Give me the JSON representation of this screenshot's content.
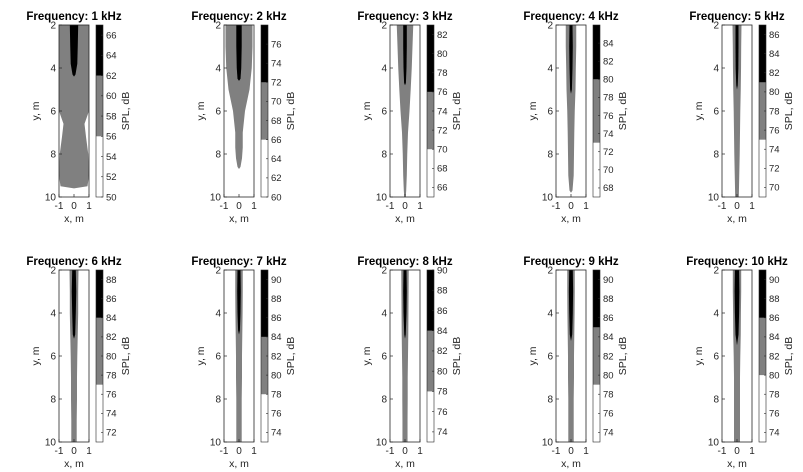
{
  "chart_data": {
    "type": "heatmap",
    "layout": {
      "rows": 2,
      "cols": 5
    },
    "colors": {
      "high": "#000000",
      "mid": "#808080",
      "low": "#ffffff"
    },
    "xlim": [
      -1,
      1
    ],
    "ylim": [
      2,
      10
    ],
    "y_reversed": true,
    "xticks": [
      "-1",
      "0",
      "1"
    ],
    "yticks": [
      "2",
      "4",
      "6",
      "8",
      "10"
    ],
    "plots": [
      {
        "title": "Frequency: 1 kHz",
        "xlabel": "x, m",
        "ylabel": "y, m",
        "colorbar_label": "SPL, dB",
        "cb_range": [
          50,
          67
        ],
        "cb_ticks": [
          "50",
          "52",
          "54",
          "56",
          "58",
          "60",
          "62",
          "64",
          "66"
        ],
        "cb_levels": [
          56,
          62
        ],
        "mid_profile": [
          [
            2,
            1.0
          ],
          [
            3,
            1.0
          ],
          [
            4,
            1.0
          ],
          [
            5,
            1.0
          ],
          [
            6,
            1.0
          ],
          [
            6.6,
            0.7
          ],
          [
            7.2,
            0.8
          ],
          [
            8,
            0.95
          ],
          [
            9,
            1.0
          ],
          [
            9.5,
            0.9
          ],
          [
            9.6,
            0.0
          ]
        ],
        "high_profile": [
          [
            2,
            0.28
          ],
          [
            3,
            0.25
          ],
          [
            3.8,
            0.22
          ],
          [
            4.3,
            0.1
          ],
          [
            4.4,
            0.0
          ]
        ]
      },
      {
        "title": "Frequency: 2 kHz",
        "xlabel": "x, m",
        "ylabel": "y, m",
        "colorbar_label": "SPL, dB",
        "cb_range": [
          60,
          78
        ],
        "cb_ticks": [
          "60",
          "62",
          "64",
          "66",
          "68",
          "70",
          "72",
          "74",
          "76"
        ],
        "cb_levels": [
          66,
          72
        ],
        "mid_profile": [
          [
            2,
            0.9
          ],
          [
            3,
            0.9
          ],
          [
            4,
            0.85
          ],
          [
            5,
            0.7
          ],
          [
            6,
            0.4
          ],
          [
            7,
            0.25
          ],
          [
            7.7,
            0.25
          ],
          [
            8.2,
            0.2
          ],
          [
            8.6,
            0.1
          ],
          [
            8.7,
            0.0
          ]
        ],
        "high_profile": [
          [
            2,
            0.18
          ],
          [
            3,
            0.18
          ],
          [
            4,
            0.15
          ],
          [
            4.5,
            0.1
          ],
          [
            4.6,
            0.0
          ]
        ]
      },
      {
        "title": "Frequency: 3 kHz",
        "xlabel": "x, m",
        "ylabel": "y, m",
        "colorbar_label": "SPL, dB",
        "cb_range": [
          65,
          83
        ],
        "cb_ticks": [
          "66",
          "68",
          "70",
          "72",
          "74",
          "76",
          "78",
          "80",
          "82"
        ],
        "cb_levels": [
          70,
          76
        ],
        "mid_profile": [
          [
            2,
            0.55
          ],
          [
            3,
            0.5
          ],
          [
            4,
            0.45
          ],
          [
            5,
            0.38
          ],
          [
            6,
            0.3
          ],
          [
            7,
            0.2
          ],
          [
            8,
            0.15
          ],
          [
            9,
            0.12
          ],
          [
            9.7,
            0.08
          ],
          [
            10,
            0.05
          ]
        ],
        "high_profile": [
          [
            2,
            0.12
          ],
          [
            3,
            0.12
          ],
          [
            4,
            0.1
          ],
          [
            4.7,
            0.06
          ],
          [
            4.8,
            0.0
          ]
        ]
      },
      {
        "title": "Frequency: 4 kHz",
        "xlabel": "x, m",
        "ylabel": "y, m",
        "colorbar_label": "SPL, dB",
        "cb_range": [
          67,
          86
        ],
        "cb_ticks": [
          "68",
          "70",
          "72",
          "74",
          "76",
          "78",
          "80",
          "82",
          "84"
        ],
        "cb_levels": [
          73,
          80
        ],
        "mid_profile": [
          [
            2,
            0.35
          ],
          [
            3,
            0.35
          ],
          [
            4,
            0.32
          ],
          [
            5,
            0.3
          ],
          [
            6,
            0.25
          ],
          [
            7,
            0.22
          ],
          [
            8,
            0.2
          ],
          [
            9,
            0.18
          ],
          [
            9.7,
            0.1
          ],
          [
            9.8,
            0.0
          ]
        ],
        "high_profile": [
          [
            2,
            0.1
          ],
          [
            3,
            0.12
          ],
          [
            4,
            0.1
          ],
          [
            5,
            0.06
          ],
          [
            5.2,
            0.0
          ]
        ]
      },
      {
        "title": "Frequency: 5 kHz",
        "xlabel": "x, m",
        "ylabel": "y, m",
        "colorbar_label": "SPL, dB",
        "cb_range": [
          69,
          87
        ],
        "cb_ticks": [
          "70",
          "72",
          "74",
          "76",
          "78",
          "80",
          "82",
          "84",
          "86"
        ],
        "cb_levels": [
          75,
          81
        ],
        "mid_profile": [
          [
            2,
            0.3
          ],
          [
            3,
            0.28
          ],
          [
            4,
            0.27
          ],
          [
            5,
            0.25
          ],
          [
            6,
            0.22
          ],
          [
            7,
            0.2
          ],
          [
            8,
            0.18
          ],
          [
            9,
            0.15
          ],
          [
            10,
            0.12
          ]
        ],
        "high_profile": [
          [
            2,
            0.1
          ],
          [
            3,
            0.1
          ],
          [
            4,
            0.09
          ],
          [
            4.8,
            0.05
          ],
          [
            5.0,
            0.0
          ]
        ]
      },
      {
        "title": "Frequency: 6 kHz",
        "xlabel": "x, m",
        "ylabel": "y, m",
        "colorbar_label": "SPL, dB",
        "cb_range": [
          71,
          89
        ],
        "cb_ticks": [
          "72",
          "74",
          "76",
          "78",
          "80",
          "82",
          "84",
          "86",
          "88"
        ],
        "cb_levels": [
          77,
          84
        ],
        "mid_profile": [
          [
            2,
            0.3
          ],
          [
            3,
            0.28
          ],
          [
            4,
            0.28
          ],
          [
            5,
            0.25
          ],
          [
            6,
            0.22
          ],
          [
            7,
            0.2
          ],
          [
            8,
            0.2
          ],
          [
            9,
            0.18
          ],
          [
            10,
            0.18
          ]
        ],
        "high_profile": [
          [
            2,
            0.12
          ],
          [
            3,
            0.15
          ],
          [
            4,
            0.12
          ],
          [
            5,
            0.08
          ],
          [
            5.2,
            0.0
          ]
        ]
      },
      {
        "title": "Frequency: 7 kHz",
        "xlabel": "x, m",
        "ylabel": "y, m",
        "colorbar_label": "SPL, dB",
        "cb_range": [
          73,
          91
        ],
        "cb_ticks": [
          "74",
          "76",
          "78",
          "80",
          "82",
          "84",
          "86",
          "88",
          "90"
        ],
        "cb_levels": [
          78,
          84
        ],
        "mid_profile": [
          [
            2,
            0.25
          ],
          [
            3,
            0.25
          ],
          [
            4,
            0.24
          ],
          [
            5,
            0.22
          ],
          [
            6,
            0.2
          ],
          [
            7,
            0.2
          ],
          [
            8,
            0.18
          ],
          [
            9,
            0.18
          ],
          [
            10,
            0.18
          ]
        ],
        "high_profile": [
          [
            2,
            0.1
          ],
          [
            3,
            0.12
          ],
          [
            4,
            0.1
          ],
          [
            4.8,
            0.06
          ],
          [
            5.0,
            0.0
          ]
        ]
      },
      {
        "title": "Frequency: 8 kHz",
        "xlabel": "x, m",
        "ylabel": "y, m",
        "colorbar_label": "SPL, dB",
        "cb_range": [
          73,
          90
        ],
        "cb_ticks": [
          "74",
          "76",
          "78",
          "80",
          "82",
          "84",
          "86",
          "88",
          "90"
        ],
        "cb_levels": [
          78,
          84
        ],
        "mid_profile": [
          [
            2,
            0.25
          ],
          [
            3,
            0.24
          ],
          [
            4,
            0.23
          ],
          [
            5,
            0.22
          ],
          [
            6,
            0.2
          ],
          [
            7,
            0.18
          ],
          [
            8,
            0.18
          ],
          [
            9,
            0.17
          ],
          [
            10,
            0.17
          ]
        ],
        "high_profile": [
          [
            2,
            0.1
          ],
          [
            3,
            0.12
          ],
          [
            4,
            0.1
          ],
          [
            5,
            0.05
          ],
          [
            5.2,
            0.0
          ]
        ]
      },
      {
        "title": "Frequency: 9 kHz",
        "xlabel": "x, m",
        "ylabel": "y, m",
        "colorbar_label": "SPL, dB",
        "cb_range": [
          73,
          91
        ],
        "cb_ticks": [
          "74",
          "76",
          "78",
          "80",
          "82",
          "84",
          "86",
          "88",
          "90"
        ],
        "cb_levels": [
          79,
          85
        ],
        "mid_profile": [
          [
            2,
            0.25
          ],
          [
            3,
            0.25
          ],
          [
            4,
            0.24
          ],
          [
            5,
            0.22
          ],
          [
            6,
            0.2
          ],
          [
            7,
            0.2
          ],
          [
            8,
            0.18
          ],
          [
            9,
            0.18
          ],
          [
            10,
            0.18
          ]
        ],
        "high_profile": [
          [
            2,
            0.12
          ],
          [
            3,
            0.14
          ],
          [
            4,
            0.12
          ],
          [
            5,
            0.08
          ],
          [
            5.3,
            0.0
          ]
        ]
      },
      {
        "title": "Frequency: 10 kHz",
        "xlabel": "x, m",
        "ylabel": "y, m",
        "colorbar_label": "SPL, dB",
        "cb_range": [
          73,
          91
        ],
        "cb_ticks": [
          "74",
          "76",
          "78",
          "80",
          "82",
          "84",
          "86",
          "88",
          "90"
        ],
        "cb_levels": [
          80,
          86
        ],
        "mid_profile": [
          [
            2,
            0.28
          ],
          [
            3,
            0.28
          ],
          [
            4,
            0.26
          ],
          [
            5,
            0.25
          ],
          [
            6,
            0.22
          ],
          [
            7,
            0.2
          ],
          [
            8,
            0.2
          ],
          [
            9,
            0.2
          ],
          [
            10,
            0.2
          ]
        ],
        "high_profile": [
          [
            2,
            0.14
          ],
          [
            3,
            0.16
          ],
          [
            4,
            0.14
          ],
          [
            5,
            0.1
          ],
          [
            5.5,
            0.0
          ]
        ]
      }
    ]
  }
}
